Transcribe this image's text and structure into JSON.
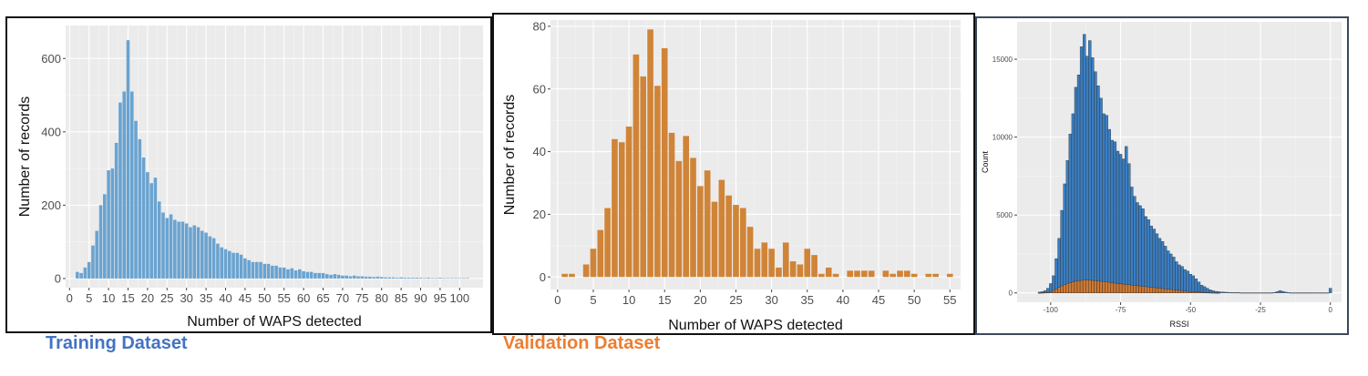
{
  "captions": {
    "training": {
      "text": "Training Dataset",
      "color": "#4472c4"
    },
    "validation": {
      "text": "Validation Dataset",
      "color": "#ed7d31"
    }
  },
  "chart_data": [
    {
      "type": "bar",
      "name_id": "training",
      "xlabel": "Number of WAPS detected",
      "ylabel": "Number of records",
      "xlim": [
        -1,
        106
      ],
      "ylim": [
        -25,
        690
      ],
      "xticks": [
        0,
        5,
        10,
        15,
        20,
        25,
        30,
        35,
        40,
        45,
        50,
        55,
        60,
        65,
        70,
        75,
        80,
        85,
        90,
        95,
        100
      ],
      "yticks": [
        0,
        200,
        400,
        600
      ],
      "bar_color": "#6aa3d0",
      "grid": true,
      "x": [
        2,
        3,
        4,
        5,
        6,
        7,
        8,
        9,
        10,
        11,
        12,
        13,
        14,
        15,
        16,
        17,
        18,
        19,
        20,
        21,
        22,
        23,
        24,
        25,
        26,
        27,
        28,
        29,
        30,
        31,
        32,
        33,
        34,
        35,
        36,
        37,
        38,
        39,
        40,
        41,
        42,
        43,
        44,
        45,
        46,
        47,
        48,
        49,
        50,
        51,
        52,
        53,
        54,
        55,
        56,
        57,
        58,
        59,
        60,
        61,
        62,
        63,
        64,
        65,
        66,
        67,
        68,
        69,
        70,
        71,
        72,
        73,
        74,
        75,
        76,
        77,
        78,
        79,
        80,
        81,
        82,
        83,
        84,
        85,
        86,
        87,
        88,
        89,
        90,
        91,
        92,
        93,
        94,
        95,
        96,
        97,
        98,
        99,
        100,
        101,
        102
      ],
      "values": [
        18,
        15,
        30,
        45,
        90,
        130,
        200,
        230,
        295,
        300,
        370,
        480,
        510,
        650,
        510,
        430,
        380,
        330,
        290,
        260,
        275,
        210,
        180,
        165,
        175,
        160,
        155,
        155,
        150,
        140,
        145,
        140,
        130,
        125,
        115,
        110,
        95,
        85,
        80,
        75,
        70,
        70,
        65,
        55,
        50,
        45,
        45,
        45,
        40,
        40,
        35,
        35,
        30,
        30,
        25,
        28,
        22,
        25,
        20,
        18,
        18,
        15,
        15,
        15,
        12,
        10,
        12,
        10,
        8,
        8,
        6,
        8,
        6,
        6,
        5,
        5,
        4,
        5,
        4,
        3,
        3,
        3,
        2,
        3,
        2,
        2,
        2,
        2,
        2,
        1,
        2,
        1,
        1,
        2,
        1,
        1,
        1,
        1,
        1,
        1,
        1
      ]
    },
    {
      "type": "bar",
      "name_id": "validation",
      "xlabel": "Number of WAPS detected",
      "ylabel": "Number of records",
      "xlim": [
        -1,
        56.5
      ],
      "ylim": [
        -4,
        82
      ],
      "xticks": [
        0,
        5,
        10,
        15,
        20,
        25,
        30,
        35,
        40,
        45,
        50,
        55
      ],
      "yticks": [
        0,
        20,
        40,
        60,
        80
      ],
      "bar_color": "#d08437",
      "grid": true,
      "x": [
        1,
        2,
        3,
        4,
        5,
        6,
        7,
        8,
        9,
        10,
        11,
        12,
        13,
        14,
        15,
        16,
        17,
        18,
        19,
        20,
        21,
        22,
        23,
        24,
        25,
        26,
        27,
        28,
        29,
        30,
        31,
        32,
        33,
        34,
        35,
        36,
        37,
        38,
        39,
        40,
        41,
        42,
        43,
        44,
        45,
        46,
        47,
        48,
        49,
        50,
        51,
        52,
        53,
        54,
        55
      ],
      "values": [
        1,
        1,
        0,
        4,
        9,
        15,
        22,
        44,
        43,
        48,
        71,
        64,
        79,
        61,
        73,
        46,
        37,
        45,
        38,
        29,
        34,
        24,
        31,
        26,
        23,
        22,
        16,
        9,
        11,
        9,
        3,
        11,
        5,
        4,
        9,
        7,
        1,
        3,
        1,
        0,
        2,
        2,
        2,
        2,
        0,
        2,
        1,
        2,
        2,
        1,
        0,
        1,
        1,
        0,
        1
      ]
    },
    {
      "type": "bar",
      "name_id": "rssi",
      "xlabel": "RSSI",
      "ylabel": "Count",
      "xlim": [
        -112,
        4
      ],
      "ylim": [
        -600,
        17400
      ],
      "xticks": [
        -100,
        -75,
        -50,
        -25,
        0
      ],
      "yticks": [
        0,
        5000,
        10000,
        15000
      ],
      "grid": true,
      "series": [
        {
          "color": "#3a7ec2",
          "x": [
            -104,
            -103,
            -102,
            -101,
            -100,
            -99,
            -98,
            -97,
            -96,
            -95,
            -94,
            -93,
            -92,
            -91,
            -90,
            -89,
            -88,
            -87,
            -86,
            -85,
            -84,
            -83,
            -82,
            -81,
            -80,
            -79,
            -78,
            -77,
            -76,
            -75,
            -74,
            -73,
            -72,
            -71,
            -70,
            -69,
            -68,
            -67,
            -66,
            -65,
            -64,
            -63,
            -62,
            -61,
            -60,
            -59,
            -58,
            -57,
            -56,
            -55,
            -54,
            -53,
            -52,
            -51,
            -50,
            -49,
            -48,
            -47,
            -46,
            -45,
            -44,
            -43,
            -42,
            -41,
            -40,
            -39,
            -38,
            -37,
            -36,
            -35,
            -34,
            -33,
            -32,
            -31,
            -30,
            -29,
            -28,
            -27,
            -26,
            -25,
            -24,
            -23,
            -22,
            -21,
            -20,
            -19,
            -18,
            -17,
            -16,
            -15,
            -14,
            -13,
            -12,
            -11,
            -10,
            -9,
            -8,
            -7,
            -6,
            -5,
            -4,
            -3,
            -2,
            -1,
            0
          ],
          "values": [
            50,
            80,
            150,
            300,
            600,
            1100,
            2200,
            3500,
            5300,
            7000,
            8500,
            10200,
            11500,
            13200,
            14000,
            15800,
            16600,
            15200,
            16200,
            15100,
            14200,
            13300,
            12500,
            11500,
            11400,
            10500,
            9800,
            9700,
            9100,
            8900,
            8600,
            9400,
            8300,
            6800,
            6200,
            5800,
            5600,
            5400,
            4900,
            4700,
            4300,
            4100,
            3800,
            3500,
            3300,
            3000,
            2700,
            2500,
            2300,
            2000,
            1800,
            1700,
            1500,
            1400,
            1200,
            1100,
            900,
            700,
            500,
            400,
            300,
            200,
            150,
            100,
            80,
            60,
            50,
            40,
            30,
            20,
            20,
            20,
            10,
            10,
            10,
            10,
            10,
            10,
            10,
            10,
            10,
            10,
            10,
            10,
            30,
            80,
            150,
            100,
            50,
            20,
            10,
            10,
            10,
            10,
            10,
            10,
            10,
            10,
            10,
            10,
            10,
            10,
            10,
            10,
            300
          ]
        },
        {
          "color": "#d07a33",
          "x": [
            -104,
            -103,
            -102,
            -101,
            -100,
            -99,
            -98,
            -97,
            -96,
            -95,
            -94,
            -93,
            -92,
            -91,
            -90,
            -89,
            -88,
            -87,
            -86,
            -85,
            -84,
            -83,
            -82,
            -81,
            -80,
            -79,
            -78,
            -77,
            -76,
            -75,
            -74,
            -73,
            -72,
            -71,
            -70,
            -69,
            -68,
            -67,
            -66,
            -65,
            -64,
            -63,
            -62,
            -61,
            -60,
            -59,
            -58,
            -57,
            -56,
            -55,
            -54,
            -53,
            -52,
            -51,
            -50,
            -49,
            -48,
            -47,
            -46,
            -45,
            -44,
            -43,
            -42,
            -41,
            -40
          ],
          "values": [
            5,
            10,
            20,
            40,
            80,
            150,
            250,
            350,
            450,
            520,
            600,
            650,
            700,
            750,
            780,
            800,
            830,
            820,
            810,
            800,
            790,
            760,
            740,
            720,
            700,
            680,
            650,
            620,
            600,
            580,
            560,
            540,
            520,
            500,
            480,
            460,
            440,
            420,
            400,
            380,
            360,
            340,
            320,
            300,
            280,
            260,
            240,
            220,
            200,
            180,
            160,
            140,
            120,
            100,
            80,
            70,
            60,
            50,
            40,
            30,
            20,
            15,
            10,
            5,
            2
          ]
        }
      ]
    }
  ]
}
